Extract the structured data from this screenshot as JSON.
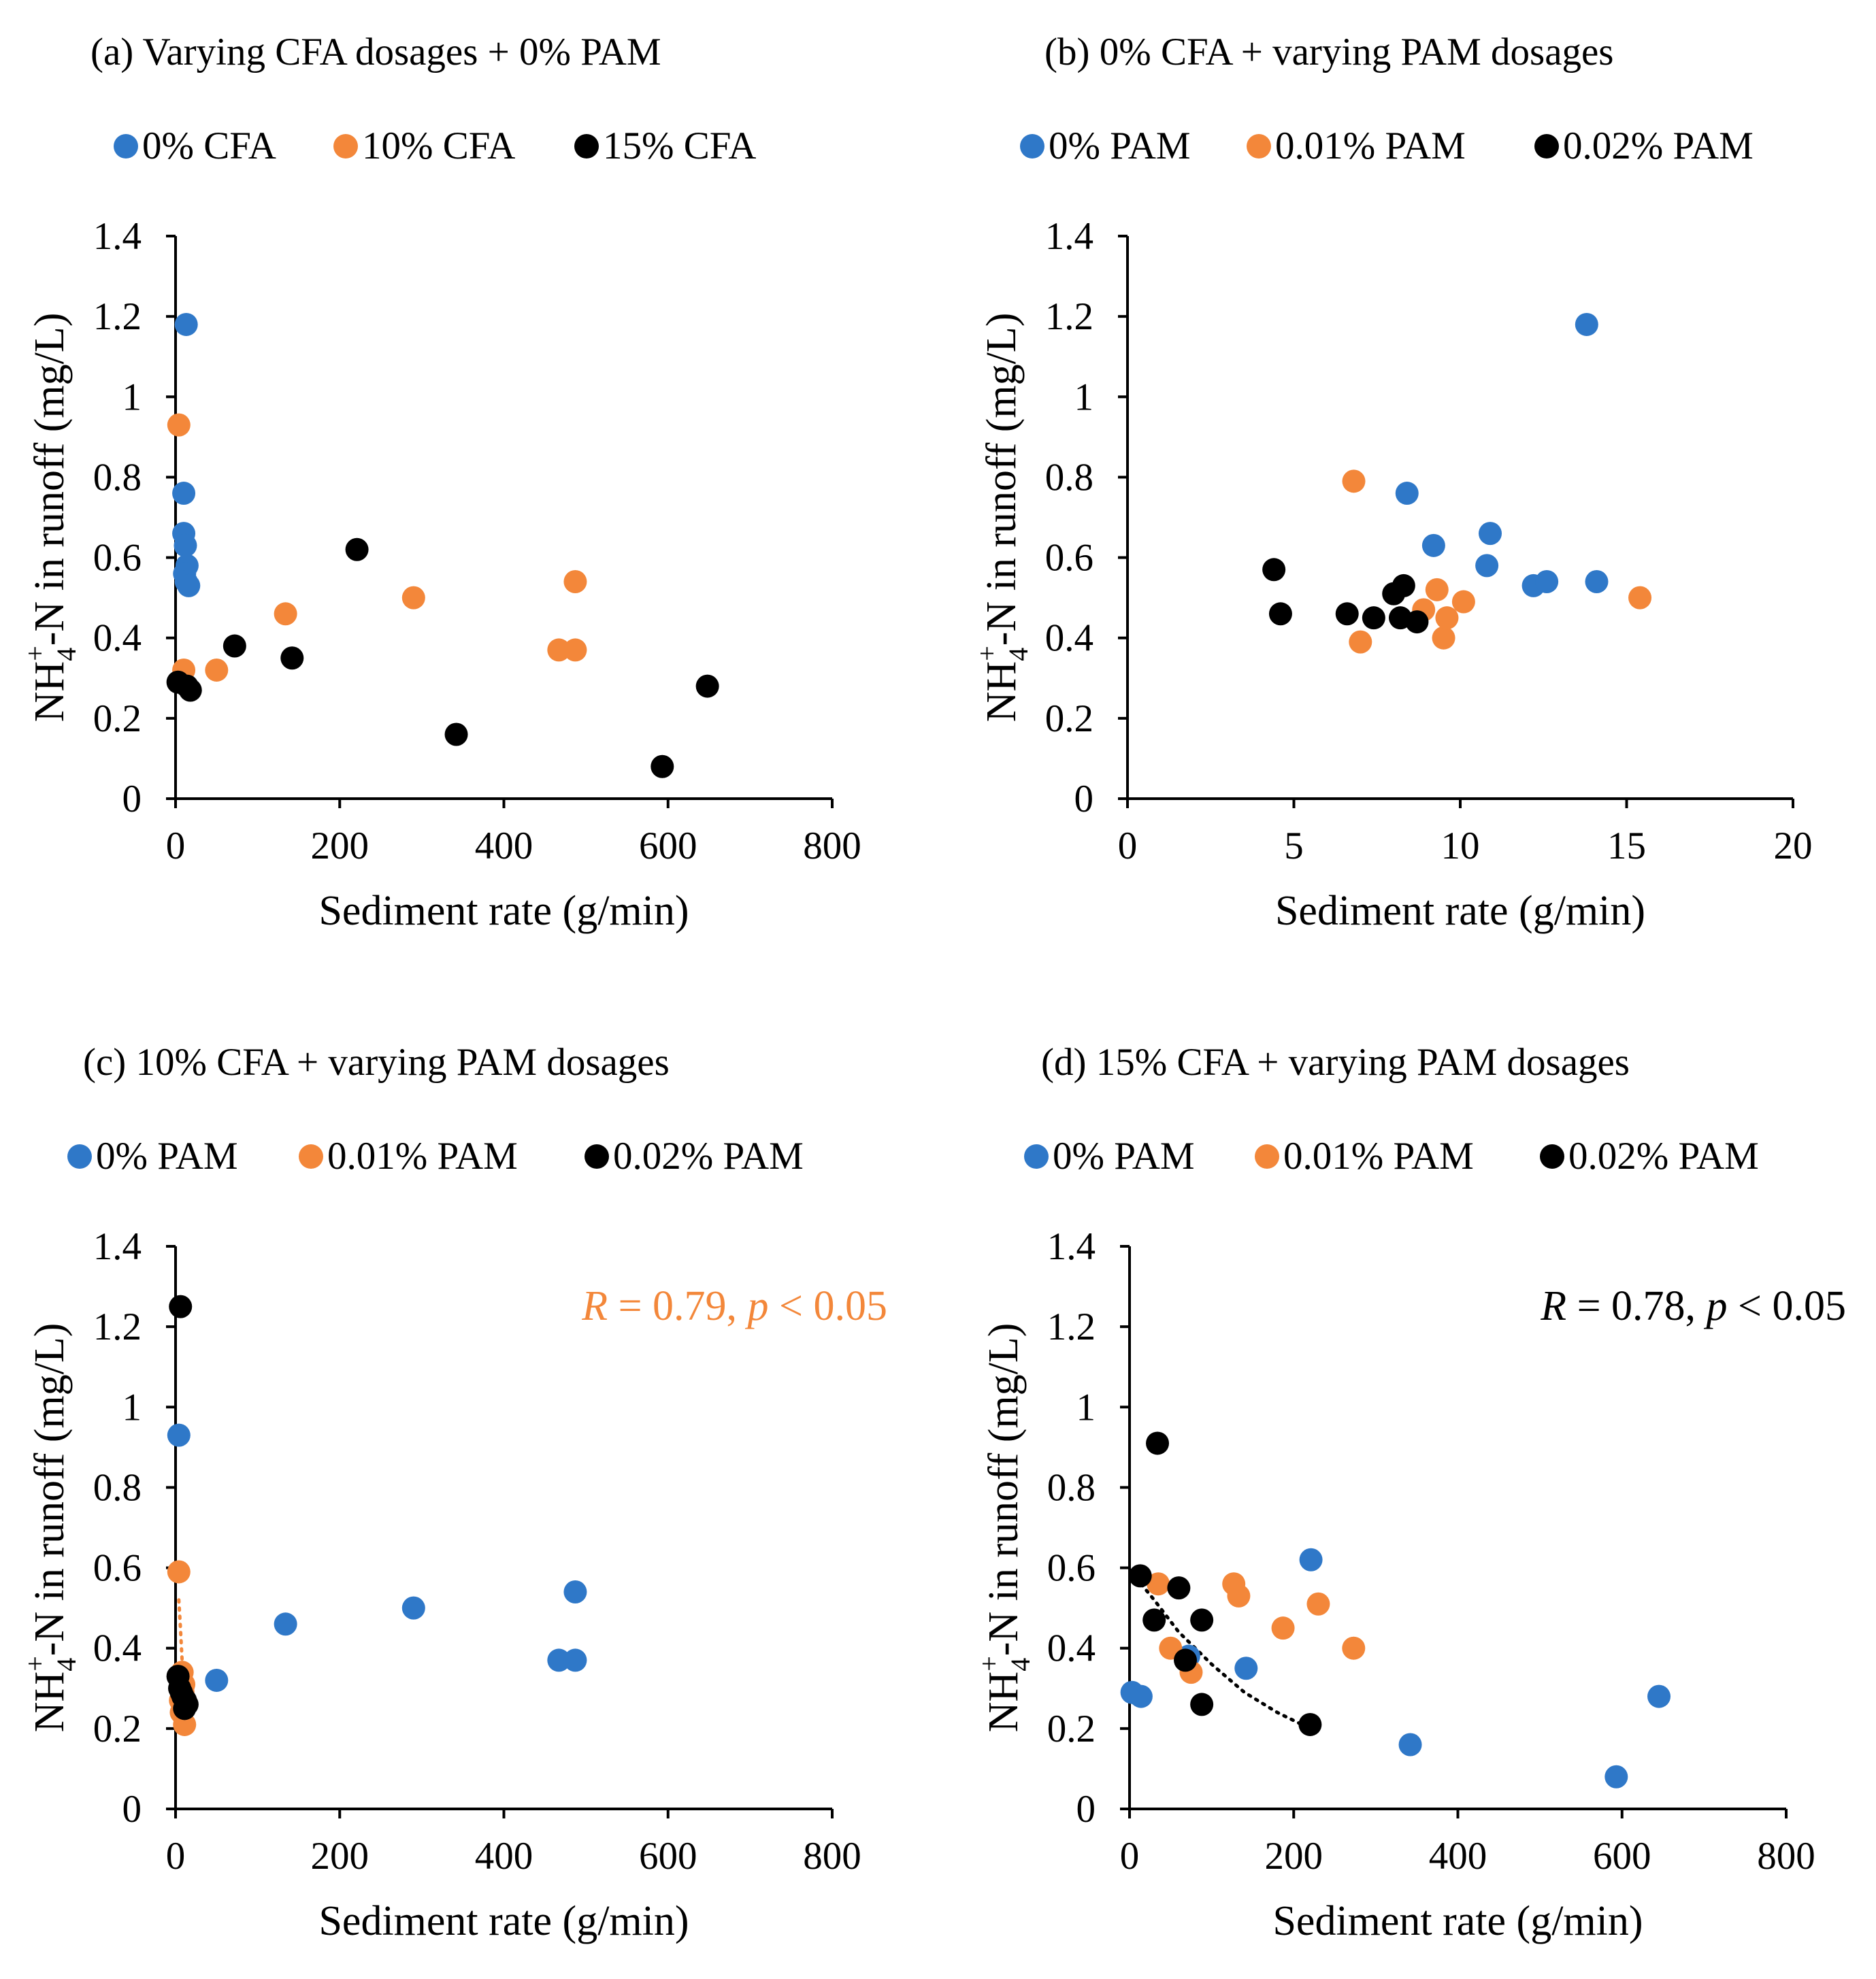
{
  "colors": {
    "blue": "#2f78c8",
    "orange": "#f3873a",
    "black": "#000000",
    "axis": "#000000"
  },
  "chart_data": [
    {
      "type": "scatter",
      "title": "(a) Varying CFA dosages + 0% PAM",
      "xlabel": "Sediment rate (g/min)",
      "ylabel": {
        "pre": "NH",
        "sub": "4",
        "sup": "+",
        "post": "-N in runoff (mg/L)"
      },
      "xlim": [
        0,
        800
      ],
      "ylim": [
        0,
        1.4
      ],
      "xticks": [
        0,
        200,
        400,
        600,
        800
      ],
      "xtick_labels": [
        "0",
        "200",
        "400",
        "600",
        "800"
      ],
      "yticks": [
        0,
        0.2,
        0.4,
        0.6,
        0.8,
        1,
        1.2,
        1.4
      ],
      "ytick_labels": [
        "0",
        "0.2",
        "0.4",
        "0.6",
        "0.8",
        "1",
        "1.2",
        "1.4"
      ],
      "series": [
        {
          "name": "0% CFA",
          "color": "#2f78c8",
          "x": [
            13,
            10,
            10,
            12,
            14,
            11,
            13,
            16
          ],
          "y": [
            1.18,
            0.76,
            0.66,
            0.63,
            0.58,
            0.56,
            0.54,
            0.53
          ]
        },
        {
          "name": "10% CFA",
          "color": "#f3873a",
          "x": [
            4,
            10,
            50,
            134,
            290,
            467,
            487,
            487
          ],
          "y": [
            0.93,
            0.32,
            0.32,
            0.46,
            0.5,
            0.37,
            0.37,
            0.54
          ]
        },
        {
          "name": "15% CFA",
          "color": "#000000",
          "x": [
            3,
            14,
            18,
            72,
            142,
            221,
            342,
            593,
            648
          ],
          "y": [
            0.29,
            0.28,
            0.27,
            0.38,
            0.35,
            0.62,
            0.16,
            0.08,
            0.28
          ]
        }
      ]
    },
    {
      "type": "scatter",
      "title": "(b) 0% CFA + varying PAM dosages",
      "xlabel": "Sediment rate (g/min)",
      "ylabel": {
        "pre": "NH",
        "sub": "4",
        "sup": "+",
        "post": "-N in runoff (mg/L)"
      },
      "xlim": [
        0,
        20
      ],
      "ylim": [
        0,
        1.4
      ],
      "xticks": [
        0,
        5,
        10,
        15,
        20
      ],
      "xtick_labels": [
        "0",
        "5",
        "10",
        "15",
        "20"
      ],
      "yticks": [
        0,
        0.2,
        0.4,
        0.6,
        0.8,
        1,
        1.2,
        1.4
      ],
      "ytick_labels": [
        "0",
        "0.2",
        "0.4",
        "0.6",
        "0.8",
        "1",
        "1.2",
        "1.4"
      ],
      "series": [
        {
          "name": "0% PAM",
          "color": "#2f78c8",
          "x": [
            13.8,
            8.4,
            9.2,
            10.9,
            10.8,
            12.2,
            12.6,
            14.1
          ],
          "y": [
            1.18,
            0.76,
            0.63,
            0.66,
            0.58,
            0.53,
            0.54,
            0.54
          ]
        },
        {
          "name": "0.01% PAM",
          "color": "#f3873a",
          "x": [
            6.8,
            7.0,
            9.3,
            9.5,
            9.6,
            10.1,
            8.9,
            15.4
          ],
          "y": [
            0.79,
            0.39,
            0.52,
            0.4,
            0.45,
            0.49,
            0.47,
            0.5
          ]
        },
        {
          "name": "0.02% PAM",
          "color": "#000000",
          "x": [
            4.4,
            4.6,
            6.6,
            7.4,
            8.0,
            8.3,
            8.2,
            8.7
          ],
          "y": [
            0.57,
            0.46,
            0.46,
            0.45,
            0.51,
            0.53,
            0.45,
            0.44
          ]
        }
      ]
    },
    {
      "type": "scatter",
      "title": "(c) 10% CFA + varying PAM dosages",
      "xlabel": "Sediment rate (g/min)",
      "ylabel": {
        "pre": "NH",
        "sub": "4",
        "sup": "+",
        "post": "-N in runoff (mg/L)"
      },
      "xlim": [
        0,
        800
      ],
      "ylim": [
        0,
        1.4
      ],
      "xticks": [
        0,
        200,
        400,
        600,
        800
      ],
      "xtick_labels": [
        "0",
        "200",
        "400",
        "600",
        "800"
      ],
      "yticks": [
        0,
        0.2,
        0.4,
        0.6,
        0.8,
        1,
        1.2,
        1.4
      ],
      "ytick_labels": [
        "0",
        "0.2",
        "0.4",
        "0.6",
        "0.8",
        "1",
        "1.2",
        "1.4"
      ],
      "annotation": {
        "parts": [
          [
            "R",
            true
          ],
          [
            " = 0.79, ",
            false
          ],
          [
            "p",
            true
          ],
          [
            " < 0.05",
            false
          ]
        ],
        "color": "#f3873a"
      },
      "trendline": {
        "series": "0.01% PAM",
        "color": "#f3873a",
        "x": [
          4,
          6,
          8,
          10,
          12
        ],
        "y": [
          0.52,
          0.45,
          0.37,
          0.3,
          0.24
        ]
      },
      "series": [
        {
          "name": "0% PAM",
          "color": "#2f78c8",
          "x": [
            4,
            50,
            134,
            290,
            467,
            487,
            487
          ],
          "y": [
            0.93,
            0.32,
            0.46,
            0.5,
            0.37,
            0.37,
            0.54
          ]
        },
        {
          "name": "0.01% PAM",
          "color": "#f3873a",
          "x": [
            4,
            8,
            10,
            9,
            6,
            7,
            11
          ],
          "y": [
            0.59,
            0.34,
            0.31,
            0.29,
            0.27,
            0.24,
            0.21
          ]
        },
        {
          "name": "0.02% PAM",
          "color": "#000000",
          "x": [
            6,
            3,
            5,
            7,
            9,
            12,
            14,
            11
          ],
          "y": [
            1.25,
            0.33,
            0.3,
            0.29,
            0.28,
            0.27,
            0.26,
            0.25
          ]
        }
      ]
    },
    {
      "type": "scatter",
      "title": "(d) 15% CFA + varying PAM dosages",
      "xlabel": "Sediment rate (g/min)",
      "ylabel": {
        "pre": "NH",
        "sub": "4",
        "sup": "+",
        "post": "-N in runoff (mg/L)"
      },
      "xlim": [
        0,
        800
      ],
      "ylim": [
        0,
        1.4
      ],
      "xticks": [
        0,
        200,
        400,
        600,
        800
      ],
      "xtick_labels": [
        "0",
        "200",
        "400",
        "600",
        "800"
      ],
      "yticks": [
        0,
        0.2,
        0.4,
        0.6,
        0.8,
        1,
        1.2,
        1.4
      ],
      "ytick_labels": [
        "0",
        "0.2",
        "0.4",
        "0.6",
        "0.8",
        "1",
        "1.2",
        "1.4"
      ],
      "annotation": {
        "parts": [
          [
            "R",
            true
          ],
          [
            " = 0.78, ",
            false
          ],
          [
            "p",
            true
          ],
          [
            " < 0.05",
            false
          ]
        ],
        "color": "#000000"
      },
      "trendline": {
        "series": "0.02% PAM",
        "color": "#000000",
        "x": [
          8,
          30,
          60,
          100,
          140,
          180,
          220
        ],
        "y": [
          0.575,
          0.52,
          0.44,
          0.36,
          0.29,
          0.24,
          0.2
        ]
      },
      "series": [
        {
          "name": "0% PAM",
          "color": "#2f78c8",
          "x": [
            3,
            14,
            72,
            142,
            221,
            342,
            593,
            645
          ],
          "y": [
            0.29,
            0.28,
            0.38,
            0.35,
            0.62,
            0.16,
            0.08,
            0.28
          ]
        },
        {
          "name": "0.01% PAM",
          "color": "#f3873a",
          "x": [
            35,
            50,
            75,
            127,
            133,
            187,
            230,
            273
          ],
          "y": [
            0.56,
            0.4,
            0.34,
            0.56,
            0.53,
            0.45,
            0.51,
            0.4
          ]
        },
        {
          "name": "0.02% PAM",
          "color": "#000000",
          "x": [
            13,
            34,
            30,
            60,
            88,
            88,
            68,
            220
          ],
          "y": [
            0.58,
            0.91,
            0.47,
            0.55,
            0.47,
            0.26,
            0.37,
            0.21
          ]
        }
      ]
    }
  ]
}
